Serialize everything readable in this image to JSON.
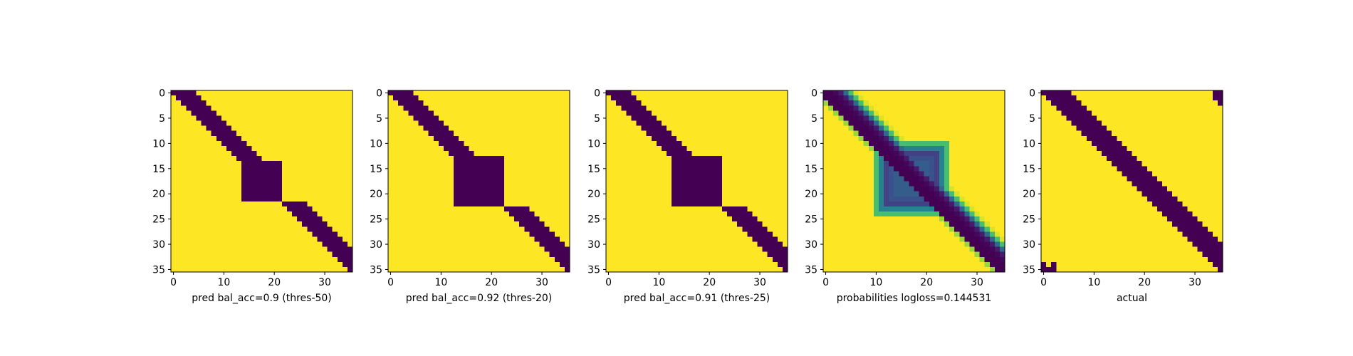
{
  "colors": {
    "background": "#ffffff",
    "axis": "#000000",
    "colormap": "viridis",
    "low": "#440154",
    "high": "#fde725"
  },
  "chart_data": [
    {
      "type": "heatmap",
      "xlabel": "pred bal_acc=0.9 (thres-50)",
      "ylabel": "",
      "size": 36,
      "xticks": [
        0,
        10,
        20,
        30
      ],
      "yticks": [
        0,
        5,
        10,
        15,
        20,
        25,
        30,
        35
      ],
      "value_range": [
        0,
        1
      ],
      "pattern": {
        "kind": "binary",
        "diagonal_bands": [
          [
            0,
            13,
            0,
            4
          ],
          [
            22,
            35,
            0,
            4
          ]
        ],
        "blocks": [
          [
            14,
            21,
            14,
            21
          ]
        ],
        "corner_cells": []
      }
    },
    {
      "type": "heatmap",
      "xlabel": "pred bal_acc=0.92 (thres-20)",
      "ylabel": "",
      "size": 36,
      "xticks": [
        0,
        10,
        20,
        30
      ],
      "yticks": [
        0,
        5,
        10,
        15,
        20,
        25,
        30,
        35
      ],
      "value_range": [
        0,
        1
      ],
      "pattern": {
        "kind": "binary",
        "diagonal_bands": [
          [
            0,
            12,
            0,
            4
          ],
          [
            23,
            35,
            0,
            4
          ]
        ],
        "blocks": [
          [
            13,
            22,
            13,
            22
          ]
        ],
        "corner_cells": []
      }
    },
    {
      "type": "heatmap",
      "xlabel": "pred bal_acc=0.91 (thres-25)",
      "ylabel": "",
      "size": 36,
      "xticks": [
        0,
        10,
        20,
        30
      ],
      "yticks": [
        0,
        5,
        10,
        15,
        20,
        25,
        30,
        35
      ],
      "value_range": [
        0,
        1
      ],
      "pattern": {
        "kind": "binary",
        "diagonal_bands": [
          [
            0,
            12,
            0,
            4
          ],
          [
            23,
            35,
            0,
            4
          ]
        ],
        "blocks": [
          [
            13,
            22,
            13,
            22
          ]
        ],
        "corner_cells": []
      }
    },
    {
      "type": "heatmap",
      "xlabel": "probabilities logloss=0.144531",
      "ylabel": "",
      "size": 36,
      "xticks": [
        0,
        10,
        20,
        30
      ],
      "yticks": [
        0,
        5,
        10,
        15,
        20,
        25,
        30,
        35
      ],
      "value_range": [
        0,
        1
      ],
      "pattern": {
        "kind": "probability",
        "band_center": [
          0.0,
          0.0,
          0.0,
          0.02,
          0.08,
          0.35,
          0.7,
          0.95
        ],
        "block": [
          12,
          22,
          12,
          22
        ],
        "block_levels": [
          0.3,
          0.25,
          0.2,
          0.45,
          0.7,
          0.95
        ]
      }
    },
    {
      "type": "heatmap",
      "xlabel": "actual",
      "ylabel": "",
      "size": 36,
      "xticks": [
        0,
        10,
        20,
        30
      ],
      "yticks": [
        0,
        5,
        10,
        15,
        20,
        25,
        30,
        35
      ],
      "value_range": [
        0,
        1
      ],
      "pattern": {
        "kind": "binary",
        "diagonal_bands": [
          [
            0,
            35,
            0,
            5
          ]
        ],
        "blocks": [],
        "corner_cells": [
          [
            0,
            34
          ],
          [
            0,
            35
          ],
          [
            1,
            34
          ],
          [
            1,
            35
          ],
          [
            2,
            35
          ],
          [
            34,
            0
          ],
          [
            35,
            0
          ],
          [
            35,
            1
          ],
          [
            35,
            2
          ],
          [
            34,
            2
          ]
        ]
      }
    }
  ]
}
